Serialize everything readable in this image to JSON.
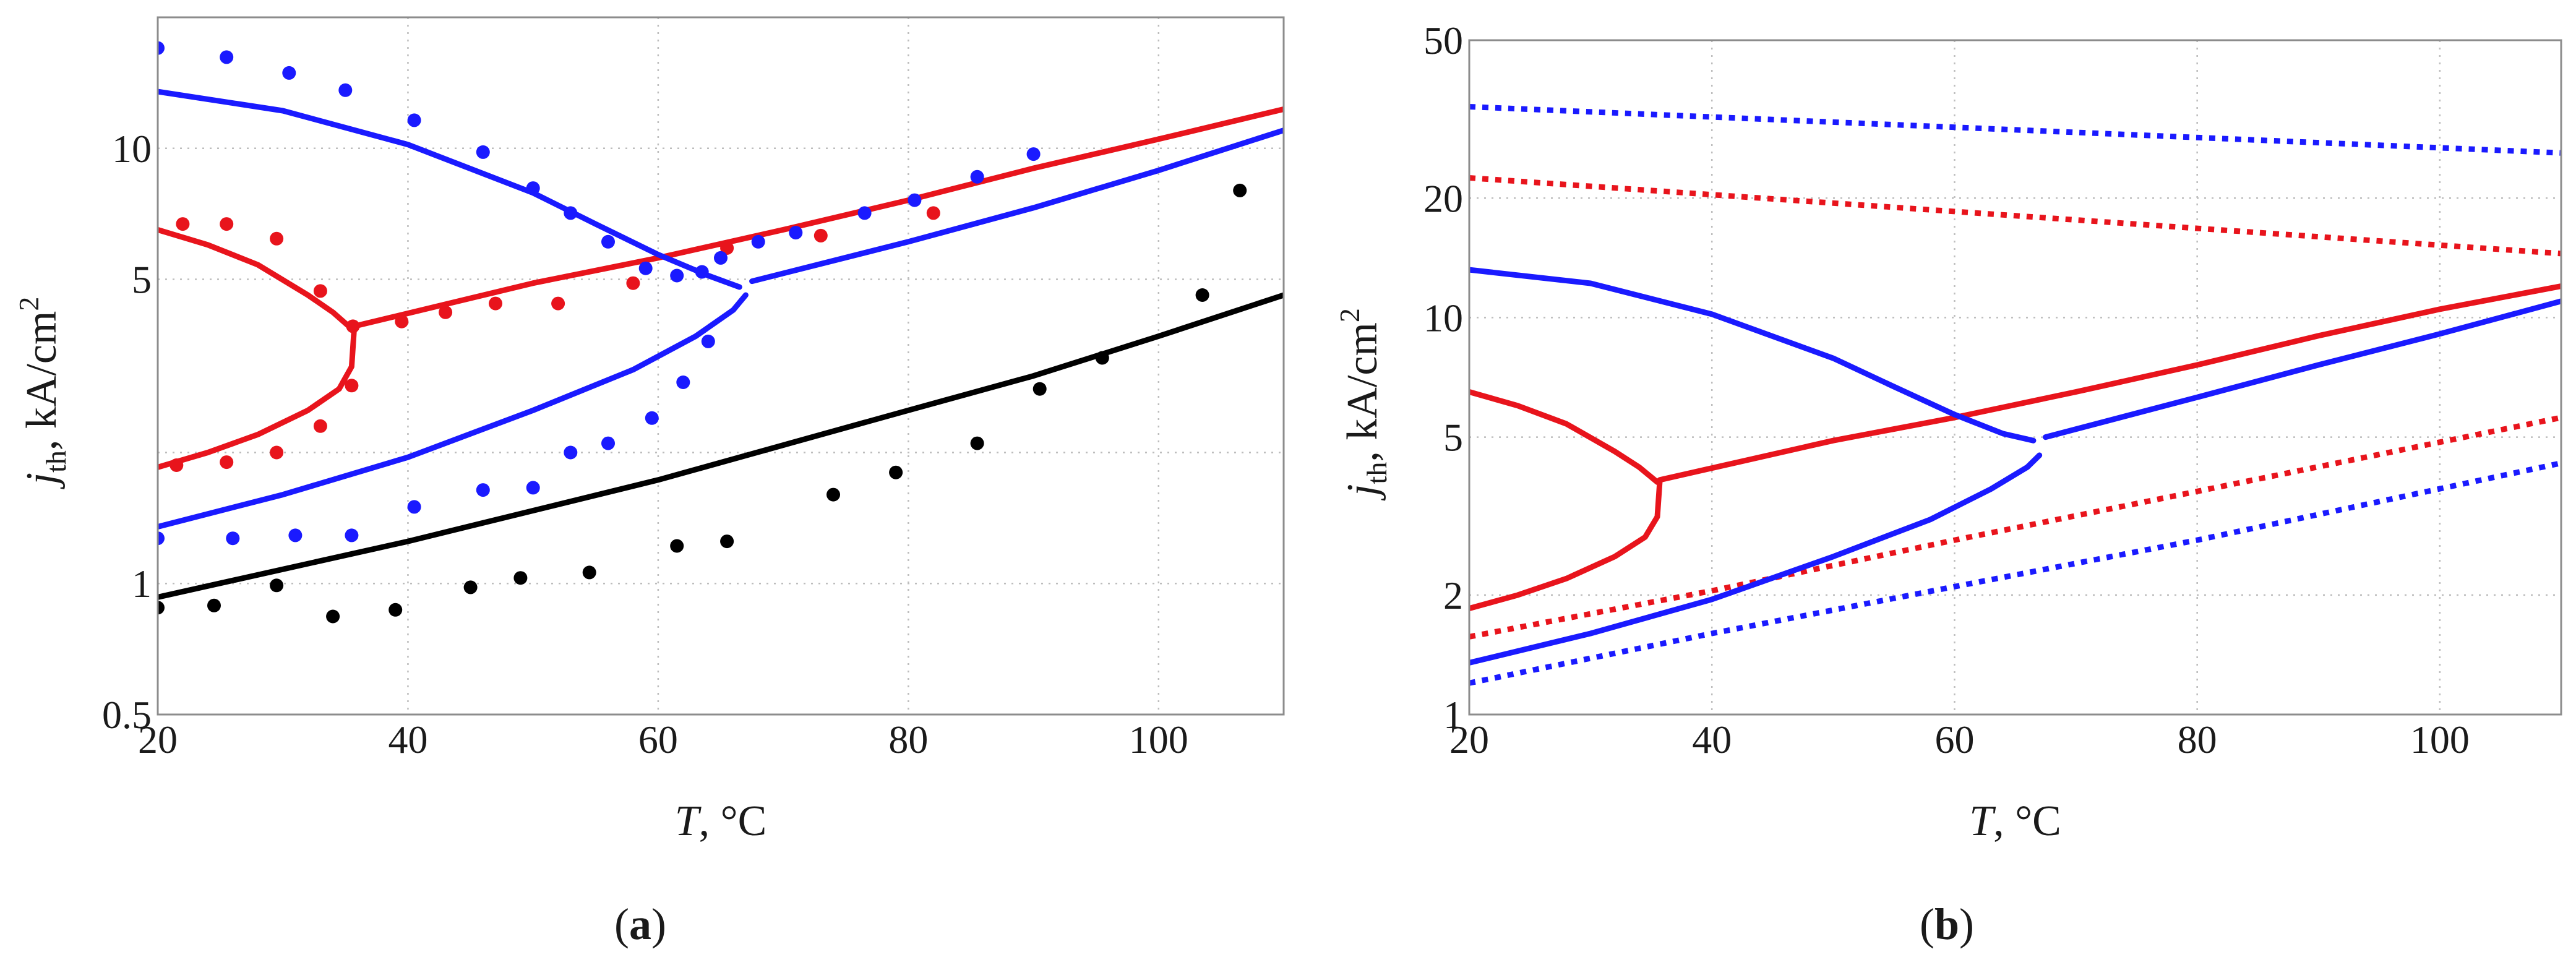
{
  "chart_data": [
    {
      "id": "a",
      "type": "scatter",
      "panel_label": "a",
      "xlabel_var": "T",
      "xlabel_rest": ", °C",
      "ylabel_var": "j",
      "ylabel_sub": "th",
      "ylabel_rest": ", kA/cm",
      "ylabel_sup": "2",
      "xlim": [
        20,
        110
      ],
      "ylim": [
        0.5,
        20
      ],
      "yscale": "log",
      "grid": true,
      "xticks": [
        20,
        40,
        60,
        80,
        100
      ],
      "xtick_labels": [
        "20",
        "40",
        "60",
        "80",
        "100"
      ],
      "yticks": [
        0.5,
        1,
        5,
        10
      ],
      "ytick_labels": [
        "0.5",
        "1",
        "5",
        "10"
      ],
      "ygrid": [
        0.5,
        1,
        2,
        5,
        10
      ],
      "lines": [
        {
          "name": "red upper branch",
          "color": "#e8141c",
          "points": [
            [
              20,
              6.5
            ],
            [
              24,
              6.0
            ],
            [
              28,
              5.4
            ],
            [
              32,
              4.6
            ],
            [
              34,
              4.2
            ],
            [
              35.5,
              3.85
            ]
          ]
        },
        {
          "name": "red lower branch",
          "color": "#e8141c",
          "points": [
            [
              20,
              1.85
            ],
            [
              24,
              2.0
            ],
            [
              28,
              2.2
            ],
            [
              32,
              2.5
            ],
            [
              34.5,
              2.8
            ],
            [
              35.5,
              3.15
            ],
            [
              35.7,
              3.85
            ]
          ]
        },
        {
          "name": "red threshold",
          "color": "#e8141c",
          "points": [
            [
              35.7,
              3.9
            ],
            [
              50,
              4.9
            ],
            [
              60,
              5.6
            ],
            [
              70,
              6.5
            ],
            [
              80,
              7.6
            ],
            [
              90,
              9.0
            ],
            [
              100,
              10.5
            ],
            [
              110,
              12.3
            ]
          ]
        },
        {
          "name": "blue upper branch",
          "color": "#1a1aff",
          "points": [
            [
              20,
              13.5
            ],
            [
              30,
              12.2
            ],
            [
              40,
              10.2
            ],
            [
              50,
              7.9
            ],
            [
              55,
              6.7
            ],
            [
              60,
              5.7
            ],
            [
              64,
              5.1
            ],
            [
              66.5,
              4.8
            ]
          ]
        },
        {
          "name": "blue lower branch",
          "color": "#1a1aff",
          "points": [
            [
              20,
              1.35
            ],
            [
              30,
              1.6
            ],
            [
              40,
              1.95
            ],
            [
              50,
              2.5
            ],
            [
              58,
              3.1
            ],
            [
              63,
              3.7
            ],
            [
              66,
              4.25
            ],
            [
              67,
              4.6
            ]
          ]
        },
        {
          "name": "blue threshold",
          "color": "#1a1aff",
          "points": [
            [
              67.5,
              4.95
            ],
            [
              80,
              6.1
            ],
            [
              90,
              7.3
            ],
            [
              100,
              8.9
            ],
            [
              110,
              11.0
            ]
          ]
        },
        {
          "name": "black threshold",
          "color": "#000000",
          "points": [
            [
              20,
              0.93
            ],
            [
              40,
              1.25
            ],
            [
              60,
              1.73
            ],
            [
              80,
              2.5
            ],
            [
              90,
              3.0
            ],
            [
              100,
              3.7
            ],
            [
              110,
              4.6
            ]
          ]
        }
      ],
      "series": [
        {
          "name": "red measured",
          "color": "#e8141c",
          "points": [
            [
              22,
              6.7
            ],
            [
              25.5,
              6.7
            ],
            [
              29.5,
              6.2
            ],
            [
              33,
              4.7
            ],
            [
              35.6,
              3.9
            ],
            [
              39.5,
              4.0
            ],
            [
              43,
              4.2
            ],
            [
              47,
              4.4
            ],
            [
              52,
              4.4
            ],
            [
              58,
              4.9
            ],
            [
              65.5,
              5.9
            ],
            [
              73,
              6.3
            ],
            [
              82,
              7.1
            ],
            [
              35.5,
              2.85
            ],
            [
              33,
              2.3
            ],
            [
              29.5,
              2.0
            ],
            [
              25.5,
              1.9
            ],
            [
              21.5,
              1.87
            ]
          ]
        },
        {
          "name": "blue measured",
          "color": "#1a1aff",
          "points": [
            [
              20,
              17
            ],
            [
              25.5,
              16.2
            ],
            [
              30.5,
              14.9
            ],
            [
              35,
              13.6
            ],
            [
              40.5,
              11.6
            ],
            [
              46,
              9.8
            ],
            [
              50,
              8.1
            ],
            [
              53,
              7.1
            ],
            [
              56,
              6.1
            ],
            [
              59,
              5.3
            ],
            [
              61.5,
              5.1
            ],
            [
              63.5,
              5.2
            ],
            [
              65,
              5.6
            ],
            [
              68,
              6.1
            ],
            [
              71,
              6.4
            ],
            [
              76.5,
              7.1
            ],
            [
              80.5,
              7.6
            ],
            [
              85.5,
              8.6
            ],
            [
              90,
              9.7
            ],
            [
              20,
              1.27
            ],
            [
              26,
              1.27
            ],
            [
              31,
              1.29
            ],
            [
              35.5,
              1.29
            ],
            [
              40.5,
              1.5
            ],
            [
              46,
              1.64
            ],
            [
              50,
              1.66
            ],
            [
              53,
              2.0
            ],
            [
              56,
              2.1
            ],
            [
              59.5,
              2.4
            ],
            [
              62,
              2.9
            ],
            [
              64,
              3.6
            ]
          ]
        },
        {
          "name": "black measured",
          "color": "#000000",
          "points": [
            [
              20,
              0.88
            ],
            [
              24.5,
              0.89
            ],
            [
              29.5,
              0.99
            ],
            [
              34,
              0.84
            ],
            [
              39,
              0.87
            ],
            [
              45,
              0.98
            ],
            [
              49,
              1.03
            ],
            [
              54.5,
              1.06
            ],
            [
              61.5,
              1.22
            ],
            [
              65.5,
              1.25
            ],
            [
              74,
              1.6
            ],
            [
              79,
              1.8
            ],
            [
              85.5,
              2.1
            ],
            [
              90.5,
              2.8
            ],
            [
              95.5,
              3.3
            ],
            [
              103.5,
              4.6
            ],
            [
              106.5,
              8.0
            ]
          ]
        }
      ]
    },
    {
      "id": "b",
      "type": "line",
      "panel_label": "b",
      "xlabel_var": "T",
      "xlabel_rest": ", °C",
      "ylabel_var": "j",
      "ylabel_sub": "th",
      "ylabel_rest": ", kA/cm",
      "ylabel_sup": "2",
      "xlim": [
        20,
        110
      ],
      "ylim": [
        1,
        50
      ],
      "yscale": "log",
      "grid": true,
      "xticks": [
        20,
        40,
        60,
        80,
        100
      ],
      "xtick_labels": [
        "20",
        "40",
        "60",
        "80",
        "100"
      ],
      "yticks": [
        1,
        2,
        5,
        10,
        20,
        50
      ],
      "ytick_labels": [
        "1",
        "2",
        "5",
        "10",
        "20",
        "50"
      ],
      "ygrid": [
        1,
        2,
        5,
        10,
        20,
        50
      ],
      "lines": [
        {
          "name": "blue dotted upper",
          "color": "#1a1aff",
          "style": "dotted",
          "points": [
            [
              20,
              34
            ],
            [
              110,
              26
            ]
          ]
        },
        {
          "name": "red dotted upper",
          "color": "#e8141c",
          "style": "dotted",
          "points": [
            [
              20,
              22.5
            ],
            [
              110,
              14.5
            ]
          ]
        },
        {
          "name": "red dotted lower",
          "color": "#e8141c",
          "style": "dotted",
          "points": [
            [
              20,
              1.57
            ],
            [
              40,
              2.05
            ],
            [
              60,
              2.75
            ],
            [
              80,
              3.65
            ],
            [
              110,
              5.6
            ]
          ]
        },
        {
          "name": "blue dotted lower",
          "color": "#1a1aff",
          "style": "dotted",
          "points": [
            [
              20,
              1.2
            ],
            [
              40,
              1.6
            ],
            [
              60,
              2.1
            ],
            [
              80,
              2.75
            ],
            [
              110,
              4.3
            ]
          ]
        },
        {
          "name": "red upper branch",
          "color": "#e8141c",
          "style": "solid",
          "points": [
            [
              20,
              6.5
            ],
            [
              24,
              6.0
            ],
            [
              28,
              5.4
            ],
            [
              32,
              4.6
            ],
            [
              34,
              4.2
            ],
            [
              35.5,
              3.85
            ]
          ]
        },
        {
          "name": "red lower branch",
          "color": "#e8141c",
          "style": "solid",
          "points": [
            [
              20,
              1.85
            ],
            [
              24,
              2.0
            ],
            [
              28,
              2.2
            ],
            [
              32,
              2.5
            ],
            [
              34.5,
              2.8
            ],
            [
              35.5,
              3.15
            ],
            [
              35.7,
              3.85
            ]
          ]
        },
        {
          "name": "red threshold",
          "color": "#e8141c",
          "style": "solid",
          "points": [
            [
              35.7,
              3.9
            ],
            [
              50,
              4.9
            ],
            [
              60,
              5.6
            ],
            [
              70,
              6.5
            ],
            [
              80,
              7.6
            ],
            [
              90,
              9.0
            ],
            [
              100,
              10.5
            ],
            [
              110,
              12.0
            ]
          ]
        },
        {
          "name": "blue upper branch",
          "color": "#1a1aff",
          "style": "solid",
          "points": [
            [
              20,
              13.2
            ],
            [
              30,
              12.2
            ],
            [
              40,
              10.2
            ],
            [
              50,
              7.9
            ],
            [
              55,
              6.7
            ],
            [
              60,
              5.7
            ],
            [
              64,
              5.1
            ],
            [
              66.5,
              4.9
            ]
          ]
        },
        {
          "name": "blue lower branch",
          "color": "#1a1aff",
          "style": "solid",
          "points": [
            [
              20,
              1.35
            ],
            [
              30,
              1.6
            ],
            [
              40,
              1.95
            ],
            [
              50,
              2.5
            ],
            [
              58,
              3.1
            ],
            [
              63,
              3.7
            ],
            [
              66,
              4.2
            ],
            [
              67,
              4.5
            ]
          ]
        },
        {
          "name": "blue threshold",
          "color": "#1a1aff",
          "style": "solid",
          "points": [
            [
              67.5,
              5.0
            ],
            [
              80,
              6.3
            ],
            [
              90,
              7.6
            ],
            [
              100,
              9.1
            ],
            [
              110,
              11.0
            ]
          ]
        }
      ]
    }
  ]
}
